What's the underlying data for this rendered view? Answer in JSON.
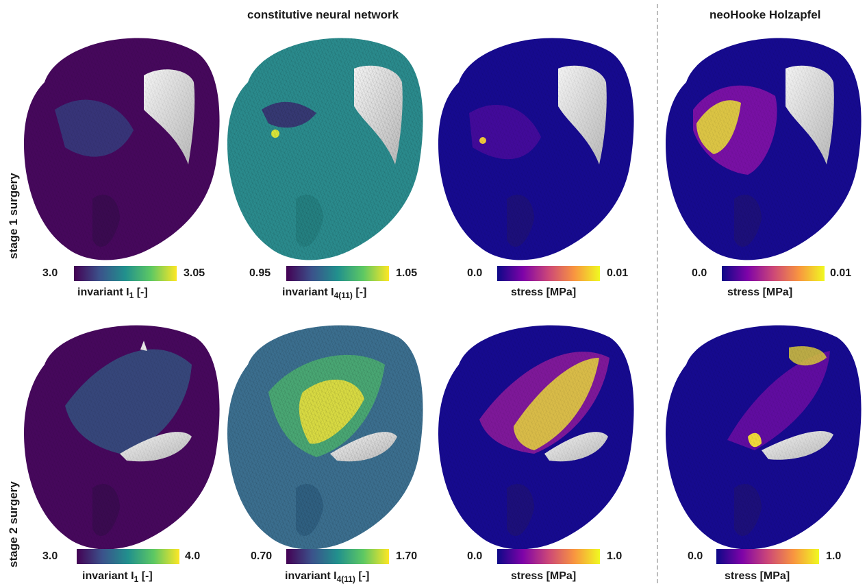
{
  "headers": {
    "cnn": "constitutive neural network",
    "nh": "neoHooke Holzapfel"
  },
  "rows": {
    "stage1": "stage 1 surgery",
    "stage2": "stage 2 surgery"
  },
  "colormaps": {
    "viridis": [
      "#440154",
      "#3b528b",
      "#21908d",
      "#5dc863",
      "#fde725"
    ],
    "plasma": [
      "#0d0887",
      "#7e03a8",
      "#cc4778",
      "#f89540",
      "#f0f921"
    ]
  },
  "panels": [
    {
      "cmap": "viridis",
      "min": "3.0",
      "max": "3.05",
      "title_main": "invariant I",
      "title_sub": "1",
      "title_end": " [-]"
    },
    {
      "cmap": "viridis",
      "min": "0.95",
      "max": "1.05",
      "title_main": "invariant I",
      "title_sub": "4(11)",
      "title_end": " [-]"
    },
    {
      "cmap": "plasma",
      "min": "0.0",
      "max": "0.01",
      "title_main": "stress [MPa]",
      "title_sub": "",
      "title_end": ""
    },
    {
      "cmap": "plasma",
      "min": "0.0",
      "max": "0.01",
      "title_main": "stress [MPa]",
      "title_sub": "",
      "title_end": ""
    },
    {
      "cmap": "viridis",
      "min": "3.0",
      "max": "4.0",
      "title_main": "invariant I",
      "title_sub": "1",
      "title_end": " [-]"
    },
    {
      "cmap": "viridis",
      "min": "0.70",
      "max": "1.70",
      "title_main": "invariant I",
      "title_sub": "4(11)",
      "title_end": " [-]"
    },
    {
      "cmap": "plasma",
      "min": "0.0",
      "max": "1.0",
      "title_main": "stress [MPa]",
      "title_sub": "",
      "title_end": ""
    },
    {
      "cmap": "plasma",
      "min": "0.0",
      "max": "1.0",
      "title_main": "stress [MPa]",
      "title_sub": "",
      "title_end": ""
    }
  ]
}
